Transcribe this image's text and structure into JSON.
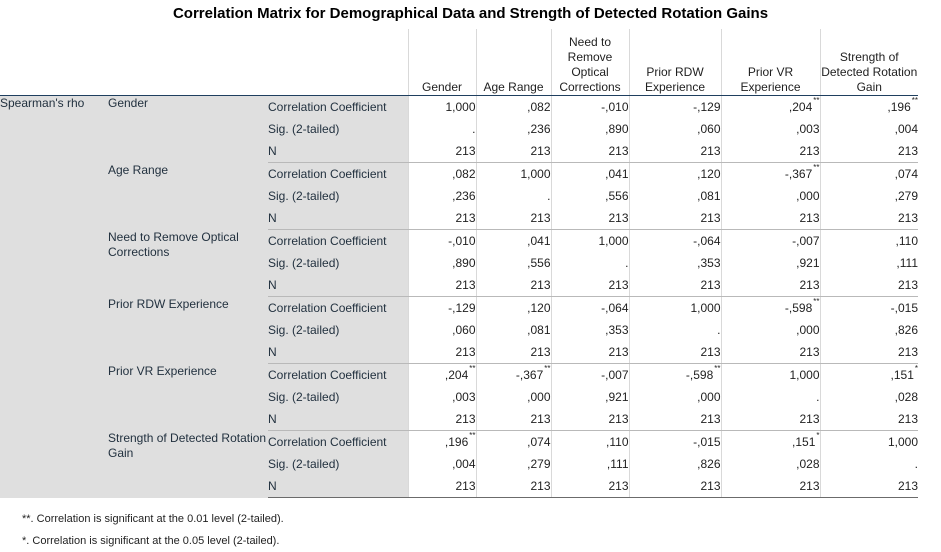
{
  "title": "Correlation Matrix for Demographical Data and Strength of Detected Rotation Gains",
  "method": "Spearman's rho",
  "columns": [
    "Gender",
    "Age Range",
    "Need to Remove Optical Corrections",
    "Prior RDW Experience",
    "Prior VR Experience",
    "Strength of Detected Rotation Gain"
  ],
  "stat_labels": [
    "Correlation Coefficient",
    "Sig. (2-tailed)",
    "N"
  ],
  "rows": [
    {
      "label": "Gender",
      "coef": [
        "1,000",
        ",082",
        "-,010",
        "-,129",
        ",204",
        ",196"
      ],
      "coef_mark": [
        "",
        "",
        "",
        "",
        "**",
        "**"
      ],
      "sig": [
        ".",
        ",236",
        ",890",
        ",060",
        ",003",
        ",004"
      ],
      "n": [
        "213",
        "213",
        "213",
        "213",
        "213",
        "213"
      ]
    },
    {
      "label": "Age Range",
      "coef": [
        ",082",
        "1,000",
        ",041",
        ",120",
        "-,367",
        ",074"
      ],
      "coef_mark": [
        "",
        "",
        "",
        "",
        "**",
        ""
      ],
      "sig": [
        ",236",
        ".",
        ",556",
        ",081",
        ",000",
        ",279"
      ],
      "n": [
        "213",
        "213",
        "213",
        "213",
        "213",
        "213"
      ]
    },
    {
      "label": "Need to Remove Optical Corrections",
      "coef": [
        "-,010",
        ",041",
        "1,000",
        "-,064",
        "-,007",
        ",110"
      ],
      "coef_mark": [
        "",
        "",
        "",
        "",
        "",
        ""
      ],
      "sig": [
        ",890",
        ",556",
        ".",
        ",353",
        ",921",
        ",111"
      ],
      "n": [
        "213",
        "213",
        "213",
        "213",
        "213",
        "213"
      ]
    },
    {
      "label": "Prior RDW Experience",
      "coef": [
        "-,129",
        ",120",
        "-,064",
        "1,000",
        "-,598",
        "-,015"
      ],
      "coef_mark": [
        "",
        "",
        "",
        "",
        "**",
        ""
      ],
      "sig": [
        ",060",
        ",081",
        ",353",
        ".",
        ",000",
        ",826"
      ],
      "n": [
        "213",
        "213",
        "213",
        "213",
        "213",
        "213"
      ]
    },
    {
      "label": "Prior VR Experience",
      "coef": [
        ",204",
        "-,367",
        "-,007",
        "-,598",
        "1,000",
        ",151"
      ],
      "coef_mark": [
        "**",
        "**",
        "",
        "**",
        "",
        "*"
      ],
      "sig": [
        ",003",
        ",000",
        ",921",
        ",000",
        ".",
        ",028"
      ],
      "n": [
        "213",
        "213",
        "213",
        "213",
        "213",
        "213"
      ]
    },
    {
      "label": "Strength of Detected Rotation Gain",
      "coef": [
        ",196",
        ",074",
        ",110",
        "-,015",
        ",151",
        "1,000"
      ],
      "coef_mark": [
        "**",
        "",
        "",
        "",
        "*",
        ""
      ],
      "sig": [
        ",004",
        ",279",
        ",111",
        ",826",
        ",028",
        "."
      ],
      "n": [
        "213",
        "213",
        "213",
        "213",
        "213",
        "213"
      ]
    }
  ],
  "footnotes": [
    "**. Correlation is significant at the 0.01 level (2-tailed).",
    "*. Correlation is significant at the 0.05 level (2-tailed)."
  ],
  "colors": {
    "label_background": "#dfdfdf",
    "header_rule": "#1f3f5f"
  }
}
